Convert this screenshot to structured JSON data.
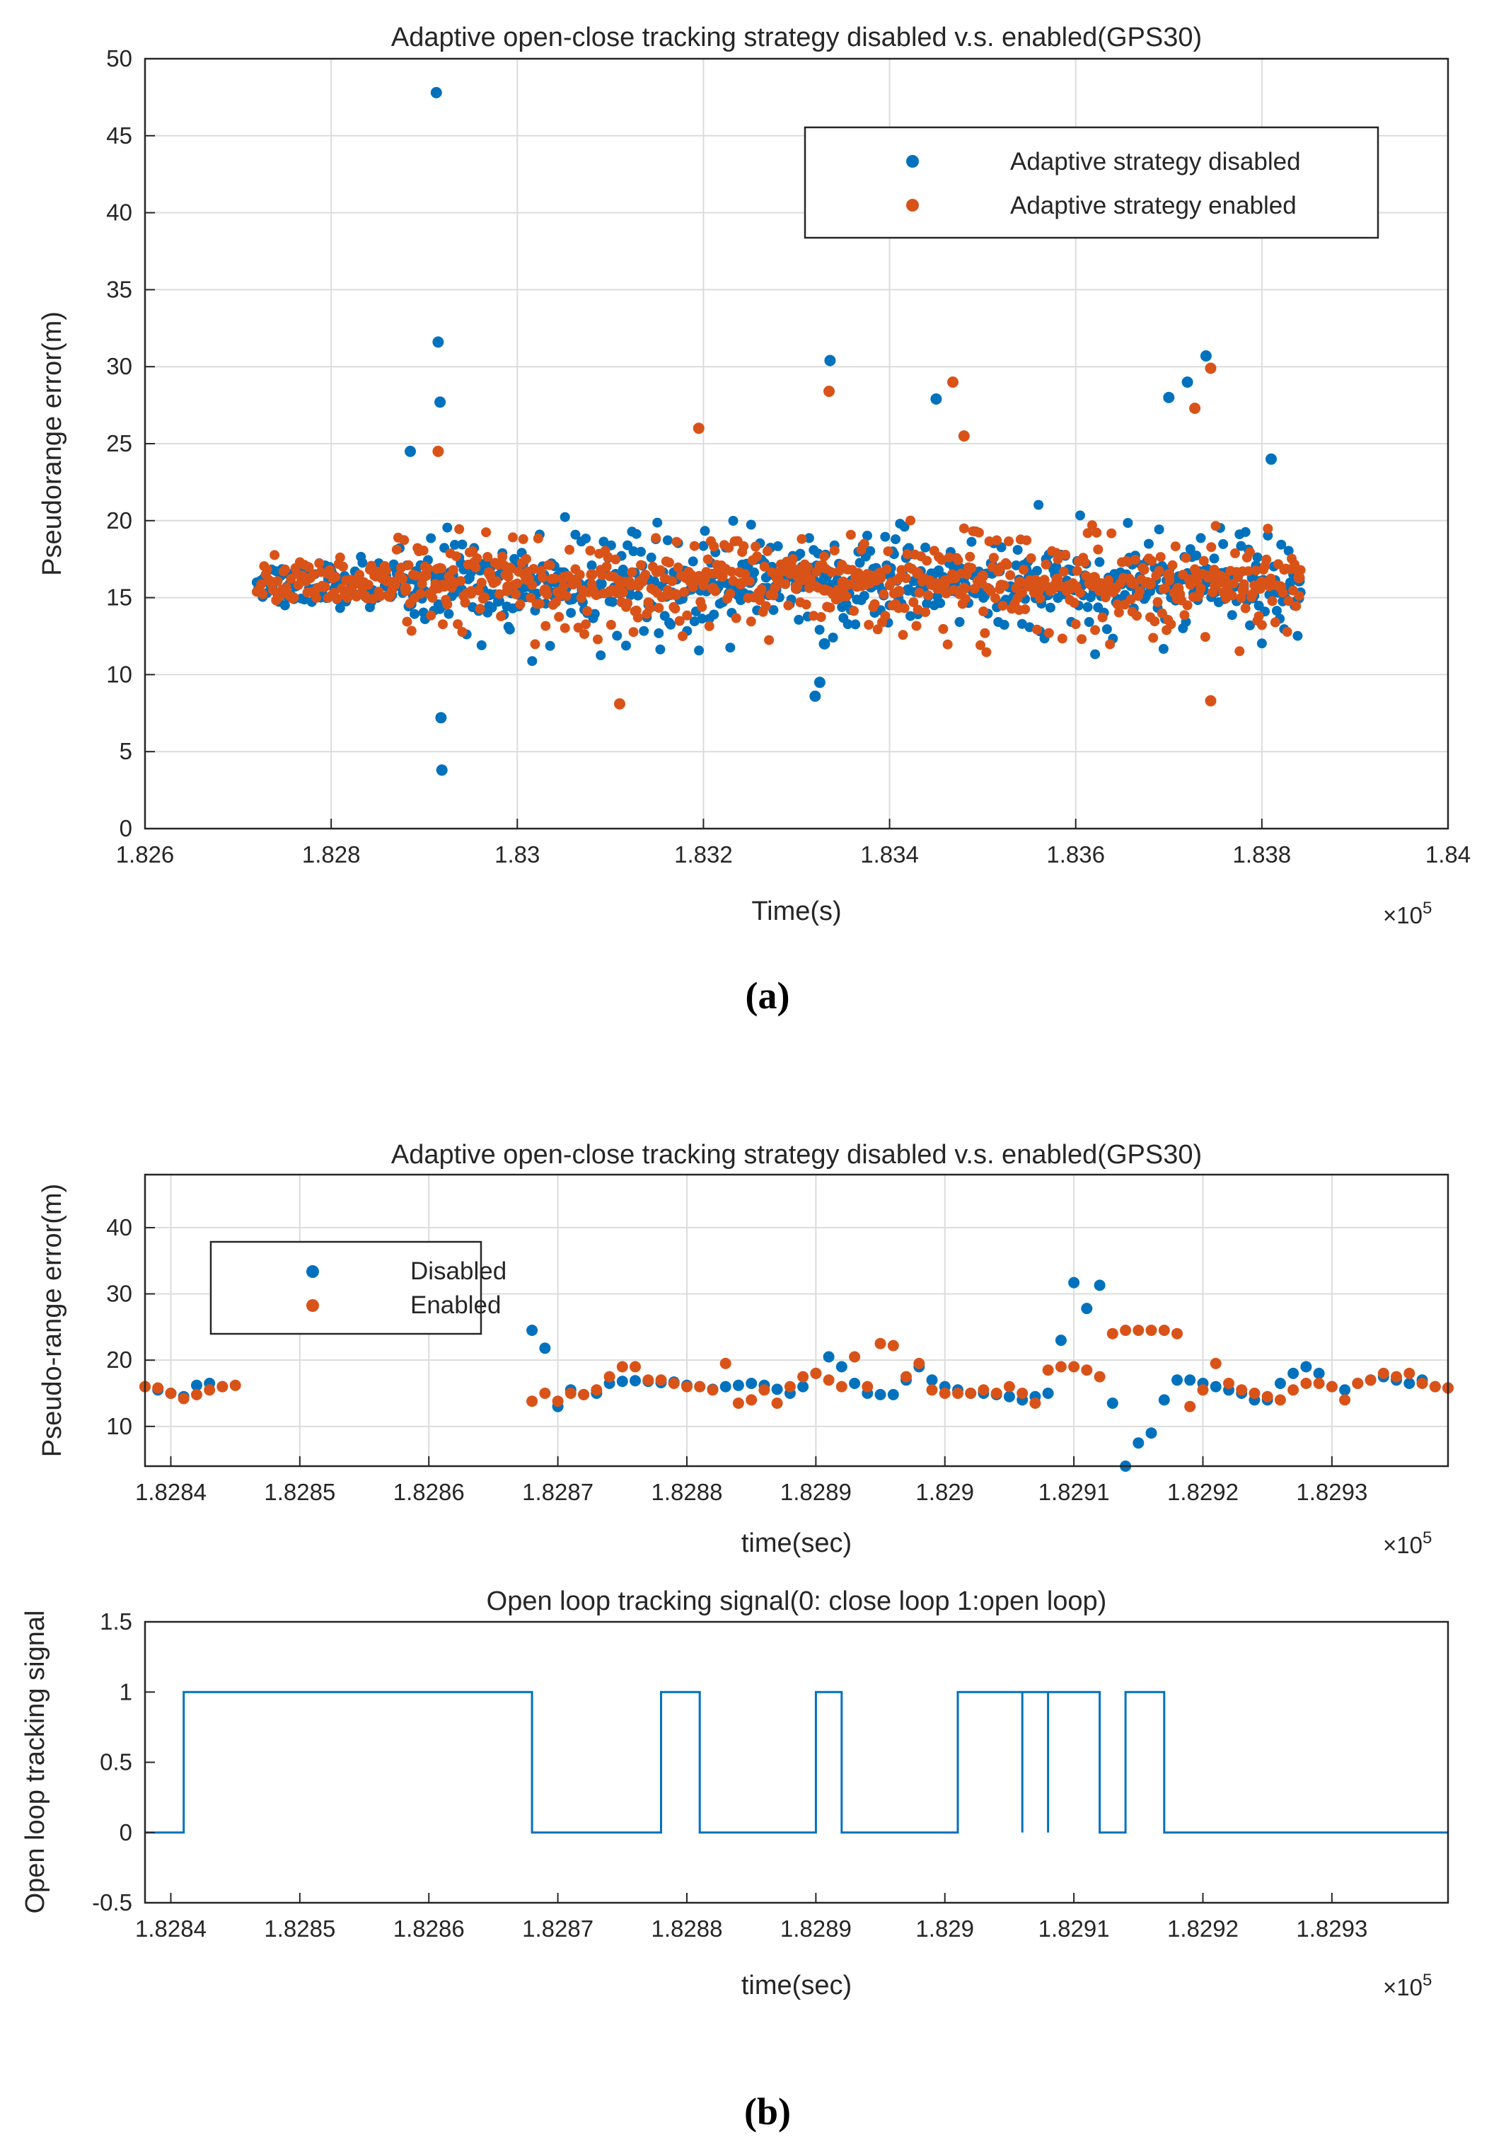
{
  "captions": {
    "a": "(a)",
    "b": "(b)"
  },
  "colors": {
    "disabled": "#0072BD",
    "enabled": "#D95319",
    "grid": "#dcdcdc",
    "axis": "#262626"
  },
  "chart_data": [
    {
      "id": "a",
      "type": "scatter",
      "title": "Adaptive open-close tracking strategy disabled v.s. enabled(GPS30)",
      "xlabel": "Time(s)",
      "ylabel": "Pseudorange error(m)",
      "x_exponent_label": "×10^5",
      "x_exponent_base": "×10",
      "x_exponent_power": "5",
      "xlim": [
        1.826,
        1.84
      ],
      "ylim": [
        0,
        50
      ],
      "xticks": [
        1.826,
        1.828,
        1.83,
        1.832,
        1.834,
        1.836,
        1.838,
        1.84
      ],
      "xtick_labels": [
        "1.826",
        "1.828",
        "1.83",
        "1.832",
        "1.834",
        "1.836",
        "1.838",
        "1.84"
      ],
      "yticks": [
        0,
        5,
        10,
        15,
        20,
        25,
        30,
        35,
        40,
        45,
        50
      ],
      "ytick_labels": [
        "0",
        "5",
        "10",
        "15",
        "20",
        "25",
        "30",
        "35",
        "40",
        "45",
        "50"
      ],
      "grid": true,
      "legend_position": "top-right",
      "series": [
        {
          "name": "Adaptive strategy disabled",
          "color": "#0072BD",
          "x": [
            1.8287,
            1.8289,
            1.829,
            1.8291,
            1.8292,
            1.8294,
            1.8296,
            1.8297,
            1.8298,
            1.83,
            1.8302,
            1.8304,
            1.8305,
            1.8307,
            1.8309,
            1.8311,
            1.8312,
            1.8314,
            1.8316,
            1.8318,
            1.832,
            1.8321,
            1.8323,
            1.8325,
            1.8327,
            1.8329,
            1.833,
            1.8332,
            1.8333,
            1.8335,
            1.8336,
            1.8338,
            1.834,
            1.8342,
            1.8344,
            1.8345,
            1.8347,
            1.8349,
            1.8351,
            1.8353,
            1.8355,
            1.8357,
            1.8359,
            1.8361,
            1.8363,
            1.8365,
            1.8367,
            1.8369,
            1.837,
            1.8372,
            1.8373,
            1.8374,
            1.8375,
            1.8377,
            1.8378,
            1.8379,
            1.8381,
            1.8383,
            1.8384,
            1.82885,
            1.82913,
            1.82915,
            1.82917,
            1.82919,
            1.82918,
            1.83336,
            1.8332,
            1.83325,
            1.8333,
            1.8374,
            1.8372,
            1.837,
            1.8381,
            1.8345
          ],
          "y": [
            15.8,
            16.2,
            15.4,
            16.6,
            15.9,
            15.5,
            16.8,
            15.2,
            16.4,
            15.7,
            16.1,
            15.3,
            16.6,
            15.5,
            15.9,
            16.4,
            15.6,
            16.2,
            15.1,
            16.7,
            15.8,
            16.5,
            15.4,
            16.0,
            15.2,
            16.3,
            15.6,
            15.9,
            16.8,
            15.3,
            16.1,
            15.7,
            16.5,
            15.5,
            16.2,
            15.8,
            16.0,
            15.4,
            16.6,
            15.7,
            16.3,
            15.2,
            15.9,
            16.4,
            15.6,
            16.1,
            15.3,
            16.7,
            15.8,
            16.2,
            15.5,
            16.0,
            15.4,
            16.5,
            15.7,
            16.3,
            15.9,
            15.6,
            16.1,
            24.5,
            47.8,
            31.6,
            27.7,
            3.8,
            7.2,
            30.4,
            8.6,
            9.5,
            12.0,
            30.7,
            29.0,
            28.0,
            24.0,
            27.9
          ]
        },
        {
          "name": "Adaptive strategy enabled",
          "color": "#D95319",
          "x": [
            1.8286,
            1.8288,
            1.829,
            1.8292,
            1.8293,
            1.8295,
            1.8297,
            1.8299,
            1.8301,
            1.8303,
            1.8305,
            1.8306,
            1.8308,
            1.831,
            1.8312,
            1.8313,
            1.8315,
            1.8317,
            1.8319,
            1.8321,
            1.8322,
            1.8324,
            1.8326,
            1.8328,
            1.833,
            1.8331,
            1.8333,
            1.8335,
            1.8337,
            1.8339,
            1.8341,
            1.8343,
            1.8345,
            1.8346,
            1.8348,
            1.835,
            1.8352,
            1.8354,
            1.8356,
            1.8358,
            1.836,
            1.8362,
            1.8364,
            1.8366,
            1.8368,
            1.837,
            1.8371,
            1.8373,
            1.8375,
            1.8376,
            1.8378,
            1.838,
            1.8382,
            1.8384,
            1.82915,
            1.83195,
            1.83335,
            1.83468,
            1.83728,
            1.83745,
            1.8311,
            1.83745,
            1.8348
          ],
          "y": [
            16.1,
            15.6,
            16.4,
            15.8,
            16.0,
            15.3,
            16.6,
            15.7,
            16.2,
            15.5,
            16.3,
            15.9,
            16.5,
            15.4,
            16.0,
            15.8,
            16.7,
            15.2,
            16.1,
            15.6,
            16.4,
            15.9,
            15.3,
            16.2,
            15.7,
            16.5,
            15.5,
            16.0,
            15.8,
            16.3,
            15.4,
            16.6,
            15.9,
            16.1,
            15.6,
            16.4,
            15.8,
            16.0,
            15.5,
            16.2,
            15.7,
            16.3,
            15.4,
            16.0,
            15.9,
            16.5,
            15.6,
            16.1,
            15.8,
            16.2,
            15.5,
            16.0,
            15.7,
            16.3,
            24.5,
            26.0,
            28.4,
            29.0,
            27.3,
            29.9,
            8.1,
            8.3,
            25.5
          ]
        }
      ]
    },
    {
      "id": "b-top",
      "type": "scatter",
      "title": "Adaptive open-close tracking strategy disabled v.s. enabled(GPS30)",
      "xlabel": "time(sec)",
      "ylabel": "Pseudo-range error(m)",
      "x_exponent_label": "×10^5",
      "x_exponent_base": "×10",
      "x_exponent_power": "5",
      "xlim": [
        1.82838,
        1.82939
      ],
      "ylim": [
        4,
        48
      ],
      "xticks": [
        1.8284,
        1.8285,
        1.8286,
        1.8287,
        1.8288,
        1.8289,
        1.829,
        1.8291,
        1.8292,
        1.8293
      ],
      "xtick_labels": [
        "1.8284",
        "1.8285",
        "1.8286",
        "1.8287",
        "1.8288",
        "1.8289",
        "1.829",
        "1.8291",
        "1.8292",
        "1.8293"
      ],
      "yticks": [
        10,
        20,
        30,
        40
      ],
      "ytick_labels": [
        "10",
        "20",
        "30",
        "40"
      ],
      "grid": true,
      "legend_position": "top-left",
      "series": [
        {
          "name": "Disabled",
          "color": "#0072BD",
          "x": [
            1.82838,
            1.82839,
            1.8284,
            1.82841,
            1.82842,
            1.82843,
            1.82844,
            1.82868,
            1.82869,
            1.8287,
            1.82871,
            1.82872,
            1.82873,
            1.82874,
            1.82875,
            1.82876,
            1.82877,
            1.82878,
            1.82879,
            1.8288,
            1.82881,
            1.82882,
            1.82883,
            1.82884,
            1.82885,
            1.82886,
            1.82887,
            1.82888,
            1.82889,
            1.8289,
            1.82891,
            1.82892,
            1.82893,
            1.82894,
            1.82895,
            1.82896,
            1.82897,
            1.82898,
            1.82899,
            1.829,
            1.82901,
            1.82902,
            1.82903,
            1.82904,
            1.82905,
            1.82906,
            1.82907,
            1.82908,
            1.82909,
            1.8291,
            1.82911,
            1.82912,
            1.82913,
            1.82914,
            1.82915,
            1.82916,
            1.82917,
            1.82918,
            1.82919,
            1.8292,
            1.82921,
            1.82922,
            1.82923,
            1.82924,
            1.82925,
            1.82926,
            1.82927,
            1.82928,
            1.82929,
            1.8293,
            1.82931,
            1.82932,
            1.82933,
            1.82934,
            1.82935,
            1.82936,
            1.82937,
            1.82938,
            1.82939
          ],
          "y": [
            16.0,
            15.5,
            15.0,
            14.5,
            16.2,
            16.5,
            16.0,
            24.5,
            21.8,
            13.0,
            15.5,
            14.8,
            15.0,
            16.5,
            16.8,
            16.9,
            16.8,
            16.6,
            16.7,
            16.2,
            16.0,
            15.6,
            16.0,
            16.2,
            16.5,
            16.2,
            15.6,
            15.0,
            16.0,
            18.0,
            20.5,
            19.0,
            16.5,
            15.0,
            14.8,
            14.8,
            17.0,
            19.0,
            17.0,
            16.0,
            15.5,
            15.0,
            15.0,
            14.8,
            14.5,
            14.0,
            14.5,
            15.0,
            23.0,
            31.7,
            27.8,
            31.3,
            13.5,
            4.0,
            7.5,
            9.0,
            14.0,
            17.0,
            17.0,
            16.5,
            16.0,
            15.5,
            15.0,
            14.0,
            14.0,
            16.5,
            18.0,
            19.0,
            18.0,
            16.0,
            15.5,
            16.5,
            17.0,
            17.5,
            17.0,
            16.5,
            17.0,
            16.0,
            15.8
          ]
        },
        {
          "name": "Enabled",
          "color": "#D95319",
          "x": [
            1.82838,
            1.82839,
            1.8284,
            1.82841,
            1.82842,
            1.82843,
            1.82844,
            1.82845,
            1.82868,
            1.82869,
            1.8287,
            1.82871,
            1.82872,
            1.82873,
            1.82874,
            1.82875,
            1.82876,
            1.82877,
            1.82878,
            1.82879,
            1.8288,
            1.82881,
            1.82882,
            1.82883,
            1.82884,
            1.82885,
            1.82886,
            1.82887,
            1.82888,
            1.82889,
            1.8289,
            1.82891,
            1.82892,
            1.82893,
            1.82894,
            1.82895,
            1.82896,
            1.82897,
            1.82898,
            1.82899,
            1.829,
            1.82901,
            1.82902,
            1.82903,
            1.82904,
            1.82905,
            1.82906,
            1.82907,
            1.82908,
            1.82909,
            1.8291,
            1.82911,
            1.82912,
            1.82913,
            1.82914,
            1.82915,
            1.82916,
            1.82917,
            1.82918,
            1.82919,
            1.8292,
            1.82921,
            1.82922,
            1.82923,
            1.82924,
            1.82925,
            1.82926,
            1.82927,
            1.82928,
            1.82929,
            1.8293,
            1.82931,
            1.82932,
            1.82933,
            1.82934,
            1.82935,
            1.82936,
            1.82937,
            1.82938,
            1.82939
          ],
          "y": [
            16.0,
            15.8,
            15.0,
            14.2,
            14.8,
            15.5,
            16.0,
            16.2,
            13.8,
            15.0,
            13.8,
            15.0,
            14.8,
            15.5,
            17.5,
            19.0,
            19.0,
            17.0,
            17.0,
            16.5,
            16.0,
            16.0,
            15.5,
            19.5,
            13.5,
            14.0,
            15.5,
            13.5,
            16.0,
            17.5,
            18.0,
            17.0,
            16.0,
            20.5,
            16.0,
            22.5,
            22.2,
            17.5,
            19.5,
            15.5,
            15.0,
            15.0,
            15.0,
            15.5,
            15.0,
            16.0,
            15.0,
            13.5,
            18.5,
            19.0,
            19.0,
            18.5,
            17.5,
            24.0,
            24.5,
            24.5,
            24.5,
            24.5,
            24.0,
            13.0,
            15.5,
            19.5,
            16.5,
            15.5,
            15.0,
            14.5,
            14.0,
            15.5,
            16.5,
            16.5,
            16.0,
            14.0,
            16.5,
            17.0,
            18.0,
            17.5,
            18.0,
            16.5,
            16.0,
            15.8
          ]
        }
      ]
    },
    {
      "id": "b-bottom",
      "type": "line",
      "title": "Open loop tracking signal(0: close loop  1:open loop)",
      "xlabel": "time(sec)",
      "ylabel": "Open loop tracking signal",
      "x_exponent_label": "×10^5",
      "x_exponent_base": "×10",
      "x_exponent_power": "5",
      "xlim": [
        1.82838,
        1.82939
      ],
      "ylim": [
        -0.5,
        1.5
      ],
      "xticks": [
        1.8284,
        1.8285,
        1.8286,
        1.8287,
        1.8288,
        1.8289,
        1.829,
        1.8291,
        1.8292,
        1.8293
      ],
      "xtick_labels": [
        "1.8284",
        "1.8285",
        "1.8286",
        "1.8287",
        "1.8288",
        "1.8289",
        "1.829",
        "1.8291",
        "1.8292",
        "1.8293"
      ],
      "yticks": [
        -0.5,
        0,
        0.5,
        1,
        1.5
      ],
      "ytick_labels": [
        "-0.5",
        "0",
        "0.5",
        "1",
        "1.5"
      ],
      "grid": false,
      "series": [
        {
          "name": "Open loop tracking signal",
          "color": "#0072BD",
          "x": [
            1.82838,
            1.82841,
            1.82841,
            1.82868,
            1.82868,
            1.82878,
            1.82878,
            1.82881,
            1.82881,
            1.8289,
            1.8289,
            1.82892,
            1.82892,
            1.82901,
            1.82901,
            1.82906,
            1.82906,
            1.82906,
            1.82906,
            1.82908,
            1.82908,
            1.82908,
            1.82908,
            1.82912,
            1.82912,
            1.82914,
            1.82914,
            1.82917,
            1.82917,
            1.82939
          ],
          "y": [
            0,
            0,
            1,
            1,
            0,
            0,
            1,
            1,
            0,
            0,
            1,
            1,
            0,
            0,
            1,
            1,
            0,
            0,
            1,
            1,
            0,
            0,
            1,
            1,
            0,
            0,
            1,
            1,
            0,
            0
          ]
        }
      ]
    }
  ]
}
